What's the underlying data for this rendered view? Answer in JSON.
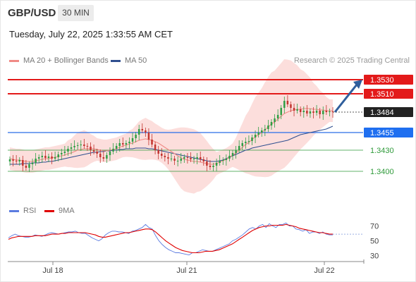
{
  "header": {
    "symbol": "GBP/USD",
    "timeframe": "30 MIN"
  },
  "datetime": "Tuesday, July 22, 2025 1:33:55 AM CET",
  "legend": {
    "ma20": {
      "label": "MA 20 + Bollinger Bands",
      "color": "#f08a85"
    },
    "ma50": {
      "label": "MA 50",
      "color": "#2f4f8f"
    },
    "credit": "Research © 2025 Trading Central"
  },
  "rsi_legend": {
    "rsi": {
      "label": "RSI",
      "color": "#5b7be0"
    },
    "ma9": {
      "label": "9MA",
      "color": "#e00000"
    }
  },
  "colors": {
    "bull": "#2e9e44",
    "bear": "#c2342f",
    "resistance": "#e31a1a",
    "pivot": "#2a6ee8",
    "support": "#2f9a3a",
    "band": "#fbd8d6",
    "arrow": "#2f5e9c"
  },
  "chart_data": [
    {
      "type": "candlestick",
      "ylim": [
        1.3375,
        1.3545
      ],
      "x_ticks": [
        "Jul 18",
        "Jul 21",
        "Jul 22"
      ],
      "last_price": 1.3484,
      "levels": [
        {
          "label": "1.3530",
          "value": 1.353,
          "role": "resistance"
        },
        {
          "label": "1.3510",
          "value": 1.351,
          "role": "resistance"
        },
        {
          "label": "1.3484",
          "value": 1.3484,
          "role": "last"
        },
        {
          "label": "1.3455",
          "value": 1.3455,
          "role": "pivot"
        },
        {
          "label": "1.3430",
          "value": 1.343,
          "role": "support"
        },
        {
          "label": "1.3400",
          "value": 1.34,
          "role": "support"
        }
      ],
      "projection": {
        "from": 1.3484,
        "to": 1.353
      },
      "close": [
        1.3417,
        1.3415,
        1.3414,
        1.3416,
        1.3408,
        1.3405,
        1.341,
        1.3412,
        1.3418,
        1.342,
        1.3422,
        1.3419,
        1.3421,
        1.3418,
        1.342,
        1.3424,
        1.3426,
        1.3428,
        1.3432,
        1.3434,
        1.3436,
        1.3437,
        1.3438,
        1.3436,
        1.3435,
        1.343,
        1.3428,
        1.3425,
        1.342,
        1.3418,
        1.3423,
        1.3428,
        1.3432,
        1.3436,
        1.344,
        1.3438,
        1.344,
        1.3442,
        1.3447,
        1.3452,
        1.346,
        1.3458,
        1.3455,
        1.3445,
        1.3438,
        1.343,
        1.3425,
        1.3422,
        1.342,
        1.3418,
        1.3418,
        1.3415,
        1.3415,
        1.3418,
        1.342,
        1.3419,
        1.3417,
        1.3418,
        1.342,
        1.3417,
        1.3414,
        1.3408,
        1.3406,
        1.3408,
        1.3412,
        1.3415,
        1.3416,
        1.3418,
        1.3422,
        1.3426,
        1.343,
        1.3436,
        1.344,
        1.3442,
        1.3443,
        1.3448,
        1.3452,
        1.3455,
        1.3458,
        1.346,
        1.3465,
        1.347,
        1.3475,
        1.348,
        1.349,
        1.35,
        1.3495,
        1.349,
        1.3486,
        1.3488,
        1.3484,
        1.3486,
        1.3482,
        1.3485,
        1.3483,
        1.3486,
        1.3481,
        1.3486,
        1.3484,
        1.3485,
        1.3484
      ],
      "ma20": [
        1.3418,
        1.3417,
        1.3416,
        1.3416,
        1.3415,
        1.3414,
        1.3414,
        1.3414,
        1.3415,
        1.3416,
        1.3417,
        1.3418,
        1.3418,
        1.3419,
        1.342,
        1.3421,
        1.3422,
        1.3423,
        1.3425,
        1.3426,
        1.3428,
        1.343,
        1.3431,
        1.3432,
        1.3432,
        1.3432,
        1.3432,
        1.3431,
        1.343,
        1.3429,
        1.3429,
        1.343,
        1.3431,
        1.3432,
        1.3434,
        1.3436,
        1.3437,
        1.3439,
        1.344,
        1.3442,
        1.3444,
        1.3445,
        1.3446,
        1.3445,
        1.3444,
        1.3442,
        1.344,
        1.3437,
        1.3434,
        1.3431,
        1.3428,
        1.3425,
        1.3422,
        1.3419,
        1.3417,
        1.3416,
        1.3415,
        1.3414,
        1.3414,
        1.3413,
        1.3412,
        1.3411,
        1.341,
        1.341,
        1.3411,
        1.3413,
        1.3415,
        1.3417,
        1.342,
        1.3423,
        1.3426,
        1.343,
        1.3434,
        1.3438,
        1.3441,
        1.3445,
        1.3449,
        1.3452,
        1.3455,
        1.3459,
        1.3463,
        1.3467,
        1.347,
        1.3474,
        1.3478,
        1.3482,
        1.3484,
        1.3486,
        1.3487,
        1.3488,
        1.3488,
        1.3489,
        1.3489,
        1.3489,
        1.3488,
        1.3488,
        1.3487,
        1.3487,
        1.3486,
        1.3486,
        1.3486
      ],
      "ma50": [
        1.341,
        1.341,
        1.341,
        1.341,
        1.3411,
        1.3411,
        1.3411,
        1.3412,
        1.3412,
        1.3412,
        1.3413,
        1.3413,
        1.3414,
        1.3414,
        1.3415,
        1.3416,
        1.3417,
        1.3418,
        1.3419,
        1.342,
        1.3421,
        1.3422,
        1.3423,
        1.3424,
        1.3425,
        1.3426,
        1.3427,
        1.3427,
        1.3428,
        1.3428,
        1.3429,
        1.3429,
        1.343,
        1.343,
        1.3431,
        1.3431,
        1.3432,
        1.3432,
        1.3432,
        1.3433,
        1.3433,
        1.3433,
        1.3433,
        1.3432,
        1.3432,
        1.3431,
        1.343,
        1.3429,
        1.3428,
        1.3427,
        1.3426,
        1.3425,
        1.3424,
        1.3423,
        1.3422,
        1.3421,
        1.342,
        1.3419,
        1.3418,
        1.3417,
        1.3416,
        1.3415,
        1.3414,
        1.3414,
        1.3414,
        1.3415,
        1.3416,
        1.3418,
        1.342,
        1.3422,
        1.3424,
        1.3426,
        1.3428,
        1.343,
        1.3431,
        1.3433,
        1.3434,
        1.3435,
        1.3436,
        1.3437,
        1.3438,
        1.3439,
        1.344,
        1.3441,
        1.3442,
        1.3443,
        1.3444,
        1.3446,
        1.3448,
        1.345,
        1.3452,
        1.3453,
        1.3454,
        1.3455,
        1.3456,
        1.3457,
        1.3458,
        1.3459,
        1.346,
        1.3462,
        1.3464
      ]
    },
    {
      "type": "line",
      "name": "RSI panel",
      "ylim": [
        25,
        80
      ],
      "y_ticks": [
        "70",
        "50",
        "30"
      ],
      "rsi": [
        54,
        57,
        59,
        57,
        56,
        55,
        55,
        56,
        58,
        57,
        56,
        58,
        60,
        61,
        60,
        59,
        60,
        61,
        62,
        62,
        63,
        61,
        60,
        60,
        57,
        54,
        52,
        50,
        53,
        58,
        61,
        63,
        63,
        62,
        62,
        61,
        60,
        63,
        64,
        66,
        68,
        72,
        68,
        66,
        57,
        50,
        45,
        41,
        38,
        36,
        34,
        34,
        33,
        32,
        31,
        34,
        34,
        36,
        38,
        37,
        36,
        36,
        38,
        40,
        42,
        44,
        46,
        50,
        52,
        55,
        58,
        62,
        66,
        68,
        66,
        70,
        72,
        68,
        73,
        70,
        68,
        72,
        72,
        74,
        70,
        70,
        66,
        65,
        63,
        65,
        60,
        62,
        62,
        60,
        62,
        59,
        58,
        58
      ],
      "ma9": [
        52,
        54,
        55,
        56,
        56,
        56,
        56,
        56,
        57,
        57,
        57,
        57,
        58,
        59,
        59,
        59,
        60,
        60,
        61,
        61,
        61,
        61,
        61,
        61,
        60,
        59,
        58,
        56,
        55,
        55,
        56,
        57,
        58,
        59,
        60,
        61,
        61,
        62,
        63,
        64,
        65,
        66,
        66,
        65,
        62,
        58,
        54,
        50,
        47,
        44,
        41,
        39,
        37,
        36,
        35,
        34,
        34,
        34,
        35,
        36,
        36,
        36,
        37,
        38,
        40,
        42,
        44,
        46,
        49,
        52,
        55,
        58,
        61,
        64,
        66,
        68,
        69,
        70,
        70,
        71,
        71,
        71,
        71,
        72,
        71,
        70,
        69,
        67,
        66,
        65,
        64,
        63,
        62,
        61,
        61,
        60,
        59,
        59
      ]
    }
  ]
}
